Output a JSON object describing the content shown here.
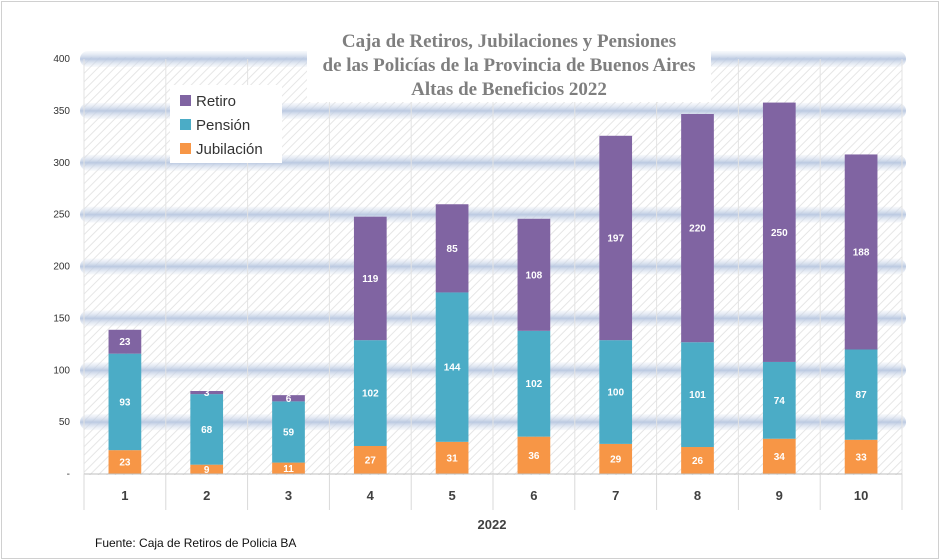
{
  "chart_data": {
    "type": "bar",
    "stacked": true,
    "title": [
      "Caja de Retiros, Jubilaciones y Pensiones",
      "de las Policías de la Provincia de Buenos Aires",
      "Altas de Beneficios 2022"
    ],
    "xlabel": "2022",
    "ylabel": "",
    "source": "Fuente: Caja de Retiros de Policia BA",
    "categories": [
      "1",
      "2",
      "3",
      "4",
      "5",
      "6",
      "7",
      "8",
      "9",
      "10"
    ],
    "ylim": [
      0,
      400
    ],
    "yticks": [
      "-",
      "50",
      "100",
      "150",
      "200",
      "250",
      "300",
      "350",
      "400"
    ],
    "grid": true,
    "legend_position": "top-left",
    "series": [
      {
        "name": "Jubilación",
        "color": "#f79646",
        "values": [
          23,
          9,
          11,
          27,
          31,
          36,
          29,
          26,
          34,
          33
        ]
      },
      {
        "name": "Pensión",
        "color": "#4bacc6",
        "values": [
          93,
          68,
          59,
          102,
          144,
          102,
          100,
          101,
          74,
          87
        ]
      },
      {
        "name": "Retiro",
        "color": "#8064a2",
        "values": [
          23,
          3,
          6,
          119,
          85,
          108,
          197,
          220,
          250,
          188
        ]
      }
    ],
    "legend_order": [
      "Retiro",
      "Pensión",
      "Jubilación"
    ]
  }
}
